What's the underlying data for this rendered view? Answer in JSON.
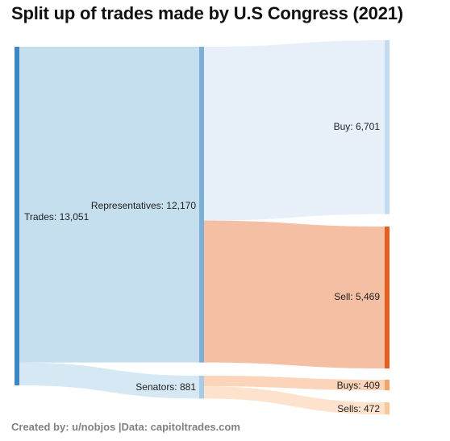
{
  "title": "Split up of trades made by U.S Congress (2021)",
  "footer": "Created by: u/nobjos |Data: capitoltrades.com",
  "chart_data": {
    "type": "sankey",
    "title": "Split up of trades made by U.S Congress (2021)",
    "nodes": [
      {
        "id": "trades",
        "label": "Trades: 13,051",
        "value": 13051,
        "color": "#3d88c4"
      },
      {
        "id": "reps",
        "label": "Representatives: 12,170",
        "value": 12170,
        "color": "#7bafd8"
      },
      {
        "id": "senators",
        "label": "Senators: 881",
        "value": 881,
        "color": "#a9cbe8"
      },
      {
        "id": "buy",
        "label": "Buy: 6,701",
        "value": 6701,
        "color": "#c3dbf0"
      },
      {
        "id": "sell",
        "label": "Sell: 5,469",
        "value": 5469,
        "color": "#e6601d"
      },
      {
        "id": "buys",
        "label": "Buys: 409",
        "value": 409,
        "color": "#f5a467"
      },
      {
        "id": "sells",
        "label": "Sells: 472",
        "value": 472,
        "color": "#f9c898"
      }
    ],
    "links": [
      {
        "source": "trades",
        "target": "reps",
        "value": 12170,
        "color": "#c5dfef"
      },
      {
        "source": "trades",
        "target": "senators",
        "value": 881,
        "color": "#d6e8f4"
      },
      {
        "source": "reps",
        "target": "buy",
        "value": 6701,
        "color": "#e7f0f9"
      },
      {
        "source": "reps",
        "target": "sell",
        "value": 5469,
        "color": "#f4bfa2"
      },
      {
        "source": "senators",
        "target": "buys",
        "value": 409,
        "color": "#fbd4b9"
      },
      {
        "source": "senators",
        "target": "sells",
        "value": 472,
        "color": "#fde3cd"
      }
    ]
  }
}
